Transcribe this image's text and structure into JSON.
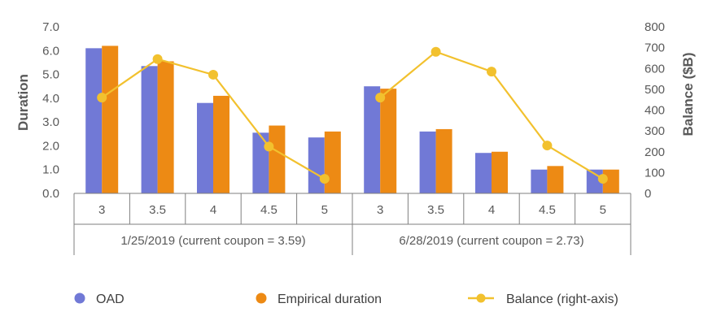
{
  "chart_data": {
    "type": "bar",
    "groups": [
      {
        "label": "1/25/2019 (current coupon = 3.59)",
        "categories": [
          "3",
          "3.5",
          "4",
          "4.5",
          "5"
        ]
      },
      {
        "label": "6/28/2019 (current coupon = 2.73)",
        "categories": [
          "3",
          "3.5",
          "4",
          "4.5",
          "5"
        ]
      }
    ],
    "series": [
      {
        "name": "OAD",
        "type": "bar",
        "axis": "left",
        "color": "#7179D6",
        "values": [
          6.1,
          5.35,
          3.8,
          2.55,
          2.35,
          4.5,
          2.6,
          1.7,
          1.0,
          1.0
        ]
      },
      {
        "name": "Empirical duration",
        "type": "bar",
        "axis": "left",
        "color": "#ED8A14",
        "values": [
          6.2,
          5.55,
          4.1,
          2.85,
          2.6,
          4.4,
          2.7,
          1.75,
          1.15,
          1.0
        ]
      },
      {
        "name": "Balance (right-axis)",
        "type": "line",
        "axis": "right",
        "color": "#F2C12E",
        "values": [
          460,
          645,
          570,
          225,
          70,
          460,
          680,
          585,
          230,
          70
        ]
      }
    ],
    "ylabel": "Duration",
    "ylabel_right": "Balance ($B)",
    "ylim": [
      0,
      7
    ],
    "ylim_right": [
      0,
      800
    ],
    "yticks": [
      "0.0",
      "1.0",
      "2.0",
      "3.0",
      "4.0",
      "5.0",
      "6.0",
      "7.0"
    ],
    "yticks_right": [
      "0",
      "100",
      "200",
      "300",
      "400",
      "500",
      "600",
      "700",
      "800"
    ],
    "grid": false,
    "legend_position": "bottom"
  }
}
